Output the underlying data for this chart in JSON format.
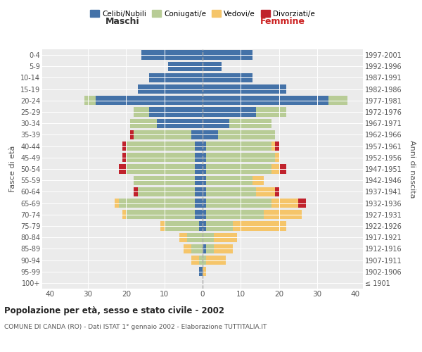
{
  "age_groups": [
    "100+",
    "95-99",
    "90-94",
    "85-89",
    "80-84",
    "75-79",
    "70-74",
    "65-69",
    "60-64",
    "55-59",
    "50-54",
    "45-49",
    "40-44",
    "35-39",
    "30-34",
    "25-29",
    "20-24",
    "15-19",
    "10-14",
    "5-9",
    "0-4"
  ],
  "birth_years": [
    "≤ 1901",
    "1902-1906",
    "1907-1911",
    "1912-1916",
    "1917-1921",
    "1922-1926",
    "1927-1931",
    "1932-1936",
    "1937-1941",
    "1942-1946",
    "1947-1951",
    "1952-1956",
    "1957-1961",
    "1962-1966",
    "1967-1971",
    "1972-1976",
    "1977-1981",
    "1982-1986",
    "1987-1991",
    "1992-1996",
    "1997-2001"
  ],
  "males": {
    "celibi": [
      0,
      1,
      0,
      0,
      0,
      1,
      2,
      2,
      2,
      2,
      2,
      2,
      2,
      3,
      12,
      14,
      28,
      17,
      14,
      9,
      16
    ],
    "coniugati": [
      0,
      0,
      1,
      3,
      4,
      9,
      18,
      20,
      15,
      16,
      18,
      18,
      18,
      15,
      7,
      4,
      3,
      0,
      0,
      0,
      0
    ],
    "vedovi": [
      0,
      0,
      2,
      2,
      2,
      1,
      1,
      1,
      0,
      0,
      0,
      0,
      0,
      0,
      0,
      0,
      0,
      0,
      0,
      0,
      0
    ],
    "divorziati": [
      0,
      0,
      0,
      0,
      0,
      0,
      0,
      0,
      1,
      0,
      2,
      1,
      1,
      1,
      0,
      0,
      0,
      0,
      0,
      0,
      0
    ]
  },
  "females": {
    "nubili": [
      0,
      0,
      0,
      1,
      0,
      1,
      1,
      1,
      1,
      1,
      1,
      1,
      1,
      4,
      7,
      14,
      33,
      22,
      13,
      5,
      13
    ],
    "coniugate": [
      0,
      0,
      1,
      2,
      3,
      7,
      15,
      17,
      13,
      12,
      17,
      18,
      17,
      15,
      11,
      8,
      5,
      0,
      0,
      0,
      0
    ],
    "vedove": [
      0,
      1,
      5,
      5,
      6,
      14,
      10,
      7,
      5,
      3,
      2,
      1,
      1,
      0,
      0,
      0,
      0,
      0,
      0,
      0,
      0
    ],
    "divorziate": [
      0,
      0,
      0,
      0,
      0,
      0,
      0,
      2,
      1,
      0,
      2,
      0,
      1,
      0,
      0,
      0,
      0,
      0,
      0,
      0,
      0
    ]
  },
  "colors": {
    "celibi_nubili": "#4472a8",
    "coniugati": "#b8cc96",
    "vedovi": "#f5c56a",
    "divorziati": "#c0222c"
  },
  "title": "Popolazione per età, sesso e stato civile - 2002",
  "subtitle": "COMUNE DI CANDA (RO) - Dati ISTAT 1° gennaio 2002 - Elaborazione TUTTITALIA.IT",
  "xlabel_left": "Maschi",
  "xlabel_right": "Femmine",
  "ylabel_left": "Fasce di età",
  "ylabel_right": "Anni di nascita",
  "xlim": 42,
  "background_color": "#ffffff",
  "legend_labels": [
    "Celibi/Nubili",
    "Coniugati/e",
    "Vedovi/e",
    "Divorziati/e"
  ],
  "grid_color": "#ffffff",
  "axis_bg": "#ebebeb"
}
